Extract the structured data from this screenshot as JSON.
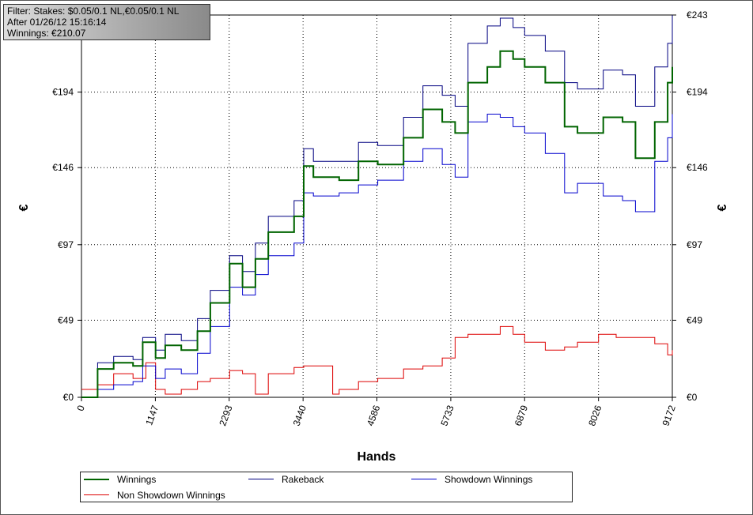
{
  "info_box": {
    "line1": "Filter: Stakes: $0.05/0.1 NL,€0.05/0.1 NL",
    "line2": "After 01/26/12 15:16:14",
    "line3": "Winnings: €210.07"
  },
  "colors": {
    "winnings": "#006400",
    "rakeback": "#000080",
    "showdown": "#0000cd",
    "non_showdown": "#dd0000",
    "grid": "#000000"
  },
  "chart_data": {
    "type": "line",
    "title": "",
    "xlabel": "Hands",
    "ylabel": "€",
    "xlim": [
      0,
      9172
    ],
    "ylim": [
      0,
      243
    ],
    "x_ticks": [
      0,
      1147,
      2293,
      3440,
      4586,
      5733,
      6879,
      8026,
      9172
    ],
    "y_ticks": [
      0,
      49,
      97,
      146,
      194,
      243
    ],
    "y_tick_labels": [
      "€0",
      "€49",
      "€97",
      "€146",
      "€194",
      "€243"
    ],
    "grid": true,
    "legend_position": "bottom",
    "series": [
      {
        "name": "Winnings",
        "x": [
          0,
          250,
          500,
          800,
          950,
          1150,
          1300,
          1550,
          1800,
          2000,
          2300,
          2500,
          2700,
          2900,
          3300,
          3450,
          3600,
          4000,
          4300,
          4600,
          5000,
          5300,
          5600,
          5800,
          6000,
          6300,
          6500,
          6700,
          6879,
          7200,
          7500,
          7700,
          8100,
          8400,
          8600,
          8900,
          9100,
          9172
        ],
        "y": [
          0,
          18,
          22,
          20,
          35,
          25,
          33,
          30,
          42,
          60,
          85,
          70,
          88,
          105,
          115,
          147,
          140,
          138,
          150,
          148,
          165,
          183,
          175,
          168,
          200,
          210,
          220,
          215,
          210,
          200,
          172,
          168,
          178,
          175,
          152,
          175,
          200,
          210
        ]
      },
      {
        "name": "Rakeback",
        "x": [
          0,
          250,
          500,
          800,
          950,
          1150,
          1300,
          1550,
          1800,
          2000,
          2300,
          2500,
          2700,
          2900,
          3300,
          3450,
          3600,
          4000,
          4300,
          4600,
          5000,
          5300,
          5600,
          5800,
          6000,
          6300,
          6500,
          6700,
          6879,
          7200,
          7500,
          7700,
          8100,
          8400,
          8600,
          8900,
          9100,
          9172
        ],
        "y": [
          0,
          22,
          26,
          24,
          38,
          30,
          40,
          36,
          50,
          68,
          90,
          80,
          98,
          115,
          125,
          158,
          150,
          150,
          162,
          160,
          178,
          198,
          192,
          185,
          225,
          236,
          241,
          235,
          230,
          220,
          200,
          196,
          208,
          205,
          185,
          210,
          225,
          243
        ]
      },
      {
        "name": "Showdown Winnings",
        "x": [
          0,
          250,
          500,
          800,
          950,
          1150,
          1300,
          1550,
          1800,
          2000,
          2300,
          2500,
          2700,
          2900,
          3300,
          3450,
          3600,
          4000,
          4300,
          4600,
          5000,
          5300,
          5600,
          5800,
          6000,
          6300,
          6500,
          6700,
          6879,
          7200,
          7500,
          7700,
          8100,
          8400,
          8600,
          8900,
          9100,
          9172
        ],
        "y": [
          0,
          5,
          8,
          10,
          20,
          12,
          18,
          15,
          28,
          45,
          70,
          65,
          78,
          90,
          98,
          130,
          128,
          130,
          135,
          138,
          150,
          158,
          148,
          140,
          175,
          180,
          178,
          172,
          168,
          155,
          130,
          136,
          128,
          125,
          118,
          150,
          165,
          180
        ]
      },
      {
        "name": "Non Showdown Winnings",
        "x": [
          0,
          250,
          500,
          800,
          1000,
          1150,
          1300,
          1550,
          1800,
          2000,
          2300,
          2500,
          2700,
          2900,
          3300,
          3450,
          3600,
          3800,
          3900,
          4000,
          4300,
          4600,
          5000,
          5300,
          5600,
          5800,
          6000,
          6300,
          6500,
          6700,
          6879,
          7200,
          7500,
          7700,
          8026,
          8300,
          8600,
          8900,
          9100,
          9172
        ],
        "y": [
          5,
          8,
          15,
          12,
          22,
          5,
          2,
          5,
          10,
          12,
          17,
          15,
          2,
          15,
          19,
          20,
          20,
          20,
          2,
          5,
          10,
          12,
          18,
          20,
          25,
          38,
          40,
          40,
          45,
          40,
          35,
          30,
          32,
          35,
          40,
          38,
          38,
          34,
          27,
          30
        ]
      }
    ]
  },
  "legend": {
    "winnings": "Winnings",
    "rakeback": "Rakeback",
    "showdown": "Showdown Winnings",
    "non_showdown": "Non Showdown Winnings"
  }
}
